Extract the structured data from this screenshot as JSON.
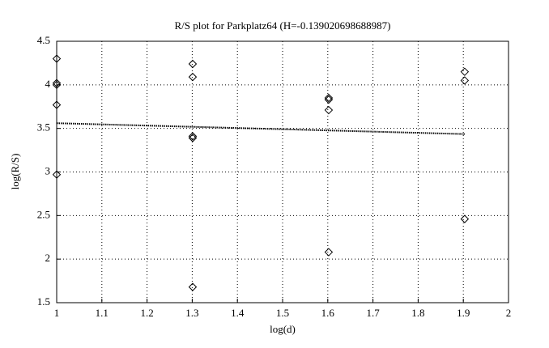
{
  "chart_data": {
    "type": "scatter",
    "title": "R/S plot for Parkplatz64 (H=-0.139020698688987)",
    "x_label": "log(d)",
    "y_label": "log(R/S)",
    "xlim": [
      1,
      2
    ],
    "ylim": [
      1.5,
      4.5
    ],
    "xticks": [
      1,
      1.1,
      1.2,
      1.3,
      1.4,
      1.5,
      1.6,
      1.7,
      1.8,
      1.9,
      2
    ],
    "yticks": [
      1.5,
      2,
      2.5,
      3,
      3.5,
      4,
      4.5
    ],
    "grid": true,
    "series": [
      {
        "color": "#000000",
        "marker": "diamond",
        "x": [
          1,
          1,
          1,
          1,
          1,
          1.301,
          1.301,
          1.301,
          1.301,
          1.301,
          1.602,
          1.602,
          1.602,
          1.602,
          1.903,
          1.903,
          1.903
        ],
        "values": [
          4.3,
          4.02,
          4.0,
          3.77,
          2.97,
          4.24,
          4.09,
          3.41,
          3.39,
          1.68,
          3.85,
          3.83,
          3.71,
          2.08,
          4.15,
          4.05,
          2.46
        ]
      }
    ],
    "fit_line": {
      "color": "#000000",
      "x": [
        1,
        1.903
      ],
      "values": [
        3.56,
        3.435
      ]
    }
  }
}
